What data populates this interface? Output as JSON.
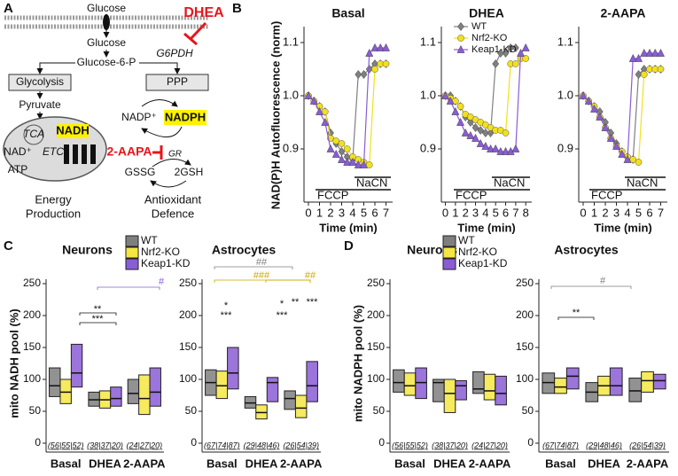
{
  "panel_labels": [
    "A",
    "B",
    "C",
    "D"
  ],
  "diagram": {
    "glucose_out": "Glucose",
    "dhea": "DHEA",
    "glucose_in": "Glucose",
    "g6pdh": "G6PDH",
    "g6p": "Glucose-6-P",
    "glycolysis": "Glycolysis",
    "ppp": "PPP",
    "pyruvate": "Pyruvate",
    "tca": "TCA",
    "nadh": "NADH",
    "nad": "NAD⁺",
    "etc": "ETC",
    "atp": "ATP",
    "aapa": "2-AAPA",
    "nadp": "NADP⁺",
    "nadph": "NADPH",
    "gr": "GR",
    "gssg": "GSSG",
    "gsh": "2GSH",
    "energy": [
      "Energy",
      "Production"
    ],
    "antioxidant": [
      "Antioxidant",
      "Defence"
    ]
  },
  "chart_data": [
    {
      "type": "line",
      "title": "Basal",
      "ylabel": "NAD(P)H Autofluorescence (norm)",
      "xlabel": "Time (min)",
      "x": [
        0,
        0.5,
        1,
        1.5,
        2,
        2.5,
        3,
        3.5,
        4,
        4.5,
        5,
        5.5,
        6,
        6.5,
        7
      ],
      "series": [
        {
          "color": "#7f7f7f",
          "marker": "diamond",
          "values": [
            1.0,
            0.99,
            0.98,
            0.97,
            0.93,
            0.91,
            0.895,
            0.885,
            0.88,
            1.04,
            1.04,
            1.05,
            1.06,
            1.06,
            1.06
          ]
        },
        {
          "color": "#f2e01e",
          "marker": "circle",
          "values": [
            1.0,
            0.99,
            0.98,
            0.97,
            0.92,
            0.915,
            0.91,
            0.9,
            0.885,
            0.88,
            0.875,
            0.87,
            1.05,
            1.06,
            1.06
          ]
        },
        {
          "color": "#8a5cd6",
          "marker": "triangle",
          "values": [
            1.0,
            0.99,
            0.97,
            0.95,
            0.9,
            0.89,
            0.88,
            0.875,
            0.875,
            0.87,
            0.87,
            1.08,
            1.09,
            1.09,
            1.09
          ]
        }
      ],
      "xlim": [
        -0.4,
        7.6
      ],
      "xticks": [
        0,
        1,
        2,
        3,
        4,
        5,
        6,
        7
      ],
      "ylim": [
        0.8,
        1.13
      ],
      "yticks": [
        0.9,
        {
          "value": 1,
          "label": "1.0"
        },
        1.1
      ],
      "annotations": [
        {
          "text": "FCCP"
        },
        {
          "text": "NaCN"
        }
      ]
    },
    {
      "type": "line",
      "title": "DHEA",
      "xlabel": "Time (min)",
      "x": [
        0,
        0.5,
        1,
        1.5,
        2,
        2.5,
        3,
        3.5,
        4,
        4.5,
        5,
        5.5,
        6,
        6.5,
        7,
        7.5,
        8
      ],
      "series": [
        {
          "name": "WT",
          "color": "#7f7f7f",
          "marker": "diamond",
          "values": [
            1.0,
            1.0,
            0.99,
            0.98,
            0.96,
            0.95,
            0.94,
            0.935,
            0.93,
            0.93,
            1.06,
            1.08,
            1.08,
            1.09,
            1.09,
            null,
            null
          ]
        },
        {
          "name": "Nrf2-KO",
          "color": "#f2e01e",
          "marker": "circle",
          "values": [
            1.0,
            0.995,
            0.99,
            0.98,
            0.965,
            0.96,
            0.955,
            0.95,
            0.945,
            0.94,
            0.935,
            0.935,
            0.93,
            1.06,
            1.06,
            1.07,
            1.07
          ]
        },
        {
          "name": "Keap1-KD",
          "color": "#8a5cd6",
          "marker": "triangle",
          "values": [
            1.0,
            0.99,
            0.97,
            0.95,
            0.93,
            0.925,
            0.92,
            0.91,
            0.905,
            0.9,
            0.9,
            0.895,
            0.895,
            0.895,
            0.9,
            1.08,
            1.09
          ]
        }
      ],
      "xlim": [
        -0.4,
        8.6
      ],
      "xticks": [
        0,
        1,
        2,
        3,
        4,
        5,
        6,
        7,
        8
      ],
      "ylim": [
        0.8,
        1.13
      ],
      "yticks": [
        0.9,
        {
          "value": 1,
          "label": "1.0"
        },
        1.1
      ],
      "legend": "upper left",
      "annotations": [
        {
          "text": "FCCP"
        },
        {
          "text": "NaCN"
        }
      ]
    },
    {
      "type": "line",
      "title": "2-AAPA",
      "xlabel": "Time (min)",
      "x": [
        0,
        0.5,
        1,
        1.5,
        2,
        2.5,
        3,
        3.5,
        4,
        4.5,
        5,
        5.5,
        6,
        6.5,
        7
      ],
      "series": [
        {
          "color": "#7f7f7f",
          "marker": "diamond",
          "values": [
            1.0,
            0.99,
            0.98,
            0.97,
            0.95,
            0.93,
            0.91,
            0.895,
            0.885,
            0.88,
            1.04,
            1.05,
            1.05,
            1.05,
            1.05
          ]
        },
        {
          "color": "#f2e01e",
          "marker": "circle",
          "values": [
            1.0,
            0.99,
            0.98,
            0.96,
            0.94,
            0.92,
            0.905,
            0.895,
            0.885,
            0.88,
            0.875,
            1.04,
            1.05,
            1.05,
            1.05
          ]
        },
        {
          "color": "#8a5cd6",
          "marker": "triangle",
          "values": [
            1.0,
            0.99,
            0.975,
            0.96,
            0.94,
            0.92,
            0.905,
            0.89,
            0.88,
            1.07,
            1.07,
            1.08,
            1.08,
            1.08,
            1.08
          ]
        }
      ],
      "xlim": [
        -0.4,
        7.6
      ],
      "xticks": [
        0,
        1,
        2,
        3,
        4,
        5,
        6,
        7
      ],
      "ylim": [
        0.8,
        1.13
      ],
      "yticks": [
        0.9,
        {
          "value": 1,
          "label": "1.0"
        },
        1.1
      ],
      "annotations": [
        {
          "text": "FCCP"
        },
        {
          "text": "NaCN"
        }
      ]
    },
    {
      "type": "box",
      "title": "Neurons",
      "ylabel": "mito NADH pool (%)",
      "categories": [
        "Basal",
        "DHEA",
        "2-AAPA"
      ],
      "n_labels": [
        "(56|55|52)",
        "(38|37|20)",
        "(24|27|20)"
      ],
      "series": [
        {
          "name": "WT",
          "color": "#7f7f7f",
          "q1": [
            73,
            58,
            62
          ],
          "median": [
            90,
            68,
            78
          ],
          "q3": [
            118,
            80,
            100
          ]
        },
        {
          "name": "Nrf2-KO",
          "color": "#f5e642",
          "q1": [
            62,
            55,
            45
          ],
          "median": [
            80,
            68,
            70
          ],
          "q3": [
            100,
            82,
            107
          ]
        },
        {
          "name": "Keap1-KD",
          "color": "#8a5cd6",
          "q1": [
            88,
            58,
            58
          ],
          "median": [
            110,
            70,
            80
          ],
          "q3": [
            155,
            88,
            118
          ]
        }
      ],
      "ylim": [
        0,
        250
      ],
      "yticks": [
        0,
        50,
        100,
        150,
        200,
        250
      ],
      "legend": "upper right",
      "annotations": [
        {
          "text": "**",
          "color": "#111"
        },
        {
          "text": "***",
          "color": "#111"
        },
        {
          "text": "#",
          "color": "#8a5cd6"
        }
      ]
    },
    {
      "type": "box",
      "title": "Astrocytes",
      "categories": [
        "Basal",
        "DHEA",
        "2-AAPA"
      ],
      "n_labels": [
        "(67|74|87)",
        "(29|48|46)",
        "(26|54|39)"
      ],
      "series": [
        {
          "color": "#7f7f7f",
          "q1": [
            75,
            55,
            53
          ],
          "median": [
            95,
            63,
            70
          ],
          "q3": [
            115,
            73,
            82
          ]
        },
        {
          "color": "#f5e642",
          "q1": [
            70,
            38,
            40
          ],
          "median": [
            90,
            48,
            55
          ],
          "q3": [
            113,
            60,
            75
          ]
        },
        {
          "color": "#8a5cd6",
          "q1": [
            85,
            65,
            65
          ],
          "median": [
            110,
            95,
            90
          ],
          "q3": [
            150,
            103,
            128
          ]
        }
      ],
      "ylim": [
        0,
        250
      ],
      "yticks": [
        0,
        50,
        100,
        150,
        200,
        250
      ],
      "annotations": [
        {
          "text": "##",
          "color": "#7f7f7f"
        },
        {
          "text": "###",
          "color": "#c9a800"
        },
        {
          "text": "##",
          "color": "#c9a800"
        },
        {
          "text": "*",
          "color": "#111"
        },
        {
          "text": "***",
          "color": "#111"
        },
        {
          "text": "*",
          "color": "#111"
        },
        {
          "text": "***",
          "color": "#111"
        },
        {
          "text": "**",
          "color": "#111"
        },
        {
          "text": "***",
          "color": "#111"
        }
      ]
    },
    {
      "type": "box",
      "title": "Neurons",
      "ylabel": "mito NADPH pool (%)",
      "categories": [
        "Basal",
        "DHEA",
        "2-AAPA"
      ],
      "n_labels": [
        "(56|55|52)",
        "(38|37|20)",
        "(24|27|20)"
      ],
      "series": [
        {
          "name": "WT",
          "color": "#7f7f7f",
          "q1": [
            80,
            65,
            78
          ],
          "median": [
            95,
            95,
            85
          ],
          "q3": [
            115,
            100,
            112
          ]
        },
        {
          "name": "Nrf2-KO",
          "color": "#f5e642",
          "q1": [
            75,
            48,
            68
          ],
          "median": [
            90,
            78,
            82
          ],
          "q3": [
            110,
            100,
            108
          ]
        },
        {
          "name": "Keap1-KD",
          "color": "#8a5cd6",
          "q1": [
            70,
            68,
            60
          ],
          "median": [
            95,
            90,
            78
          ],
          "q3": [
            118,
            98,
            105
          ]
        }
      ],
      "ylim": [
        0,
        250
      ],
      "yticks": [
        0,
        50,
        100,
        150,
        200,
        250
      ],
      "legend": "upper left"
    },
    {
      "type": "box",
      "title": "Astrocytes",
      "categories": [
        "Basal",
        "DHEA",
        "2-AAPA"
      ],
      "n_labels": [
        "(67|74|87)",
        "(29|48|46)",
        "(26|54|39)"
      ],
      "series": [
        {
          "color": "#7f7f7f",
          "q1": [
            78,
            65,
            65
          ],
          "median": [
            95,
            80,
            82
          ],
          "q3": [
            110,
            95,
            102
          ]
        },
        {
          "color": "#f5e642",
          "q1": [
            78,
            75,
            80
          ],
          "median": [
            88,
            90,
            98
          ],
          "q3": [
            102,
            105,
            112
          ]
        },
        {
          "color": "#8a5cd6",
          "q1": [
            85,
            75,
            85
          ],
          "median": [
            105,
            90,
            98
          ],
          "q3": [
            118,
            118,
            108
          ]
        }
      ],
      "ylim": [
        0,
        250
      ],
      "yticks": [
        0,
        50,
        100,
        150,
        200,
        250
      ],
      "annotations": [
        {
          "text": "#",
          "color": "#7f7f7f"
        },
        {
          "text": "**",
          "color": "#111"
        }
      ]
    }
  ]
}
